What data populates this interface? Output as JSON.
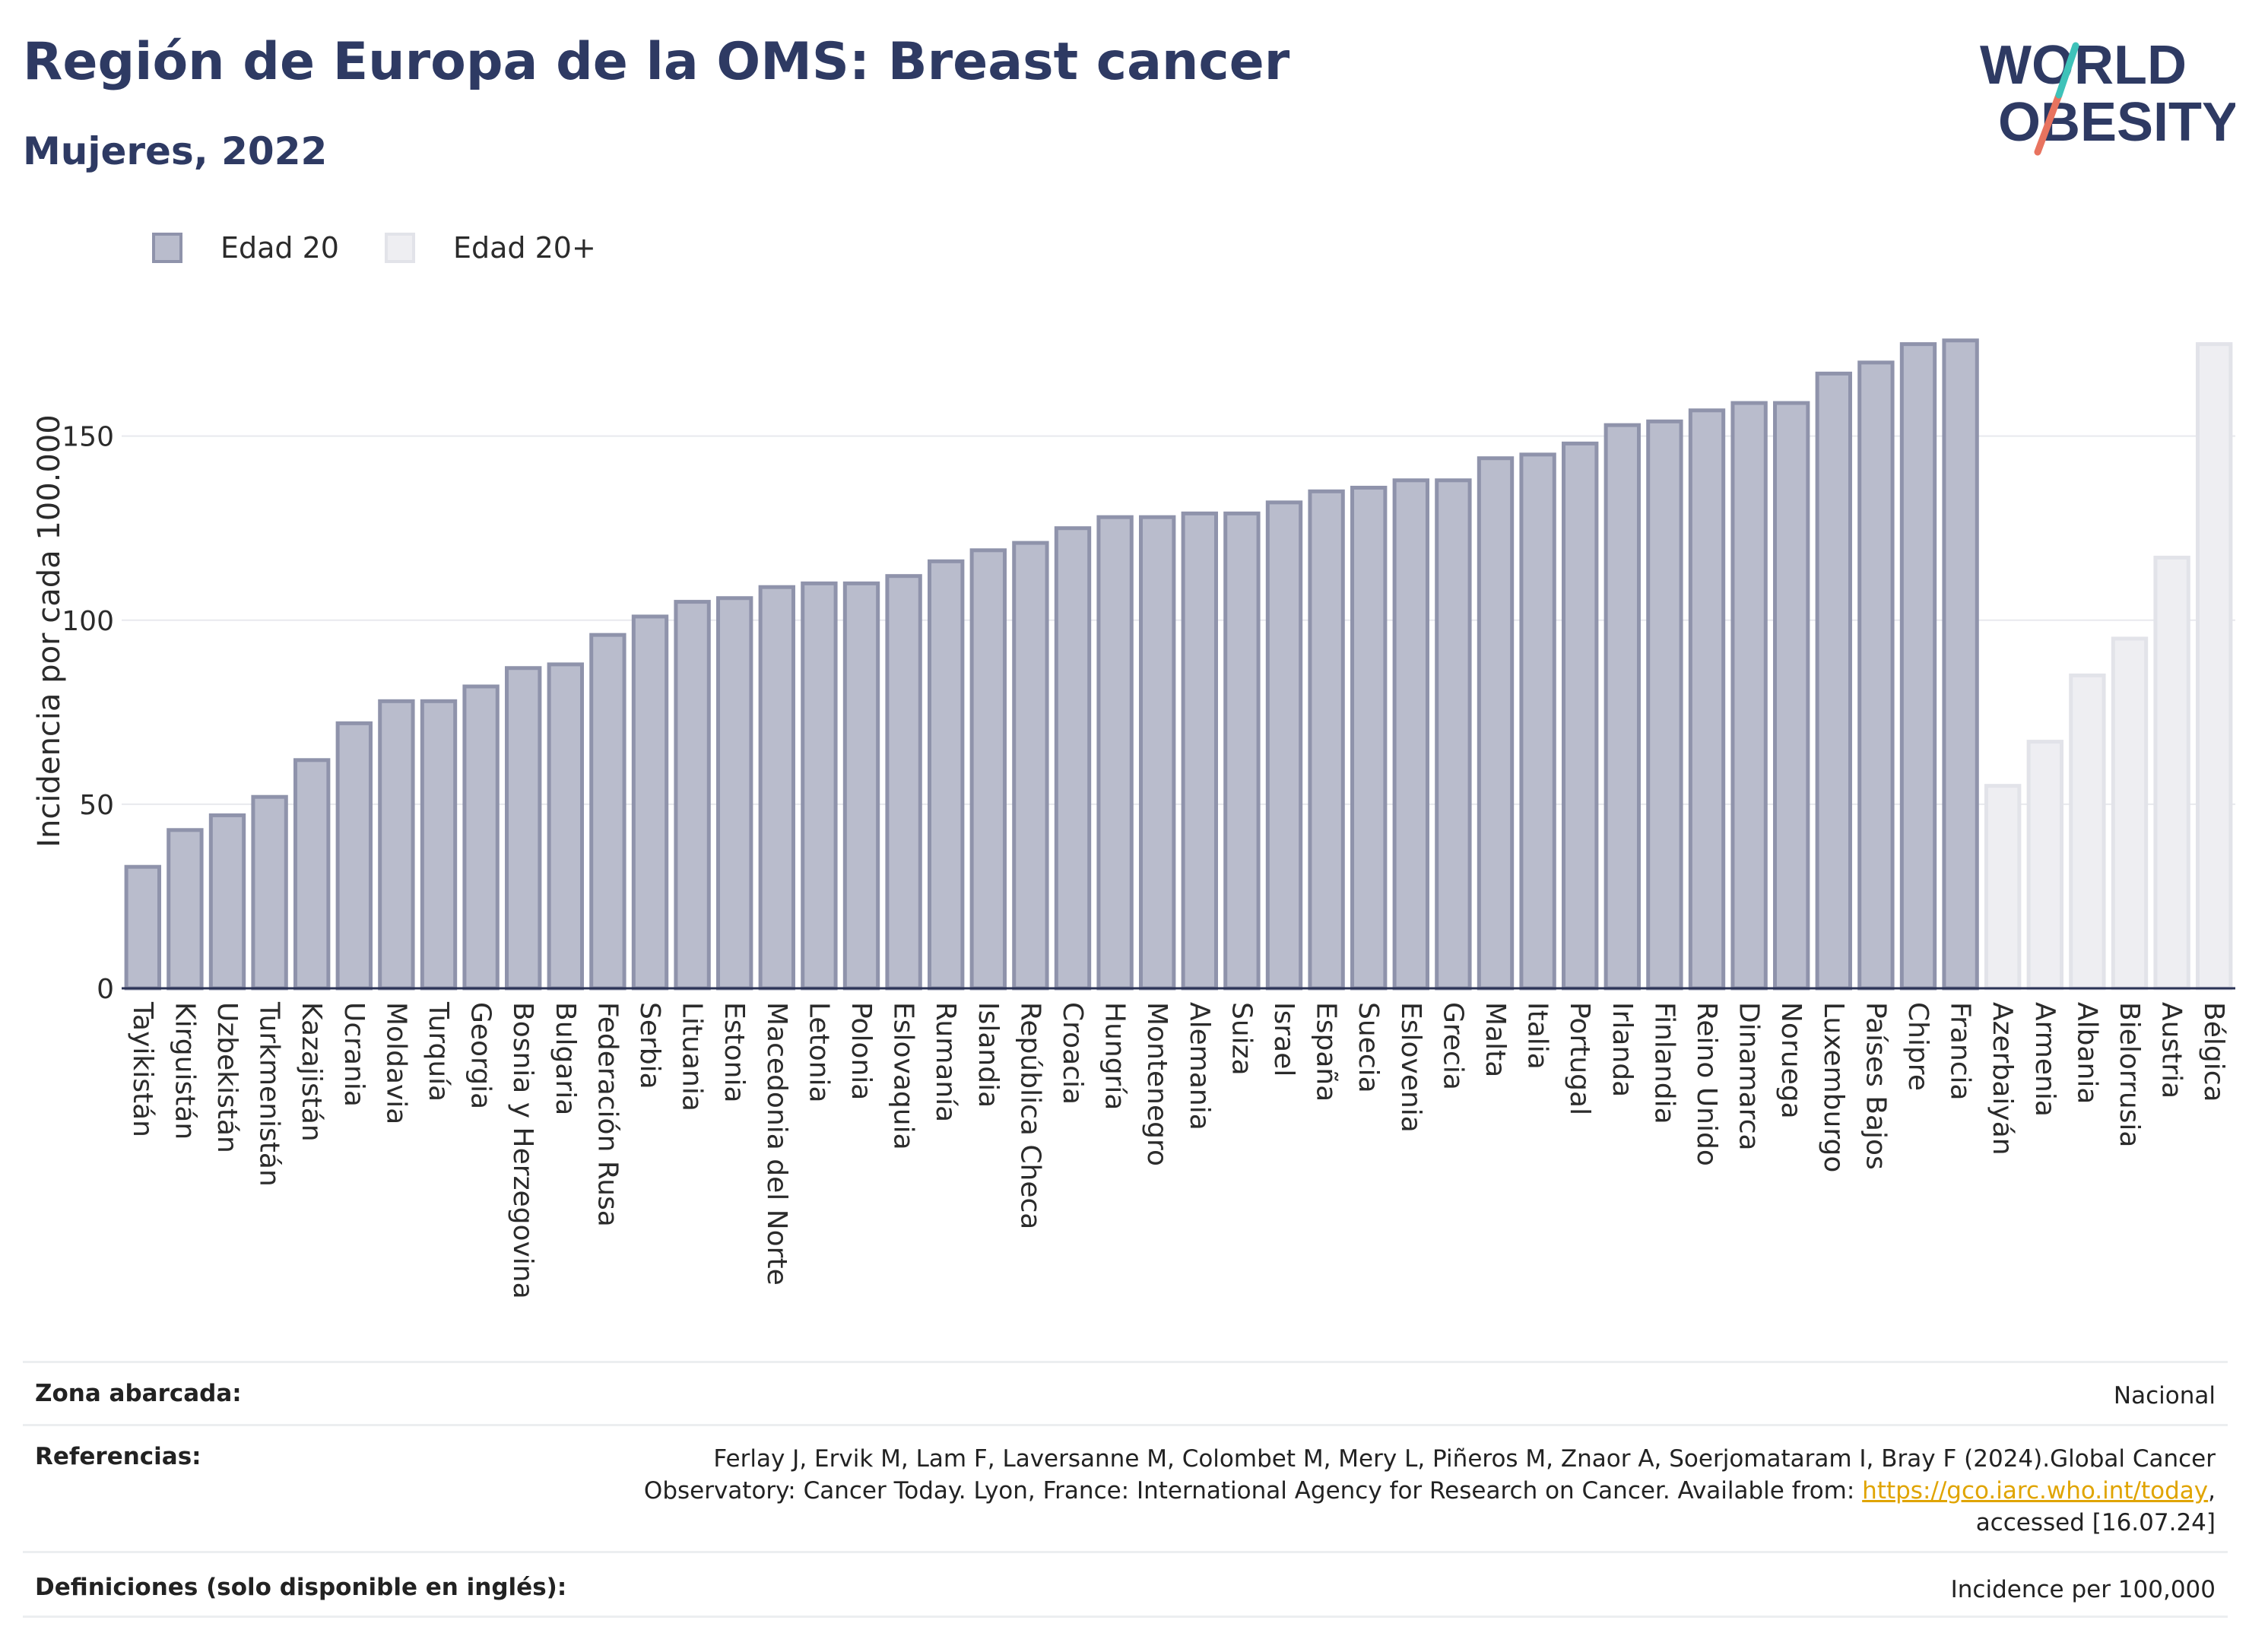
{
  "header": {
    "title": "Región de Europa de la OMS: Breast cancer",
    "subtitle": "Mujeres, 2022"
  },
  "logo": {
    "line1": "WORLD",
    "line2": "OBESITY"
  },
  "legend": [
    {
      "label": "Edad 20",
      "color": "#b9bccc"
    },
    {
      "label": "Edad 20+",
      "color": "#eeeef2"
    }
  ],
  "chart_data": {
    "type": "bar",
    "ylabel": "Incidencia por cada 100.000",
    "ylim": [
      0,
      190
    ],
    "yticks": [
      0,
      50,
      100,
      150
    ],
    "grid": true,
    "legend_position": "top-left",
    "categories": [
      "Tayikistán",
      "Kirguistán",
      "Uzbekistán",
      "Turkmenistán",
      "Kazajistán",
      "Ucrania",
      "Moldavia",
      "Turquía",
      "Georgia",
      "Bosnia y Herzegovina",
      "Bulgaria",
      "Federación Rusa",
      "Serbia",
      "Lituania",
      "Estonia",
      "Macedonia del Norte",
      "Letonia",
      "Polonia",
      "Eslovaquia",
      "Rumanía",
      "Islandia",
      "República Checa",
      "Croacia",
      "Hungría",
      "Montenegro",
      "Alemania",
      "Suiza",
      "Israel",
      "España",
      "Suecia",
      "Eslovenia",
      "Grecia",
      "Malta",
      "Italia",
      "Portugal",
      "Irlanda",
      "Finlandia",
      "Reino Unido",
      "Dinamarca",
      "Noruega",
      "Luxemburgo",
      "Países Bajos",
      "Chipre",
      "Francia",
      "Azerbaiyán",
      "Armenia",
      "Albania",
      "Bielorrusia",
      "Austria",
      "Bélgica"
    ],
    "series": [
      {
        "name": "Edad 20",
        "values": [
          33,
          43,
          47,
          52,
          62,
          72,
          78,
          78,
          82,
          87,
          88,
          96,
          101,
          105,
          106,
          109,
          110,
          110,
          112,
          116,
          119,
          121,
          125,
          128,
          128,
          129,
          129,
          132,
          135,
          136,
          138,
          138,
          144,
          145,
          148,
          153,
          154,
          157,
          159,
          159,
          167,
          170,
          175,
          176,
          null,
          null,
          null,
          null,
          null,
          null
        ]
      },
      {
        "name": "Edad 20+",
        "values": [
          null,
          null,
          null,
          null,
          null,
          null,
          null,
          null,
          null,
          null,
          null,
          null,
          null,
          null,
          null,
          null,
          null,
          null,
          null,
          null,
          null,
          null,
          null,
          null,
          null,
          null,
          null,
          null,
          null,
          null,
          null,
          null,
          null,
          null,
          null,
          null,
          null,
          null,
          null,
          null,
          null,
          null,
          null,
          null,
          55,
          67,
          85,
          95,
          117,
          175
        ]
      }
    ],
    "colors": {
      "primary_fill": "#b9bccc",
      "primary_stroke": "#8f93ab",
      "secondary_fill": "#eeeef2",
      "secondary_stroke": "#e2e3e9",
      "grid": "#e8e9ee",
      "axis": "#2b3356"
    }
  },
  "footer": {
    "rows": [
      {
        "label": "Zona abarcada:",
        "value": "Nacional"
      },
      {
        "label": "Referencias:",
        "value_line1": "Ferlay J, Ervik M, Lam F, Laversanne M, Colombet M, Mery L, Piñeros M, Znaor A, Soerjomataram I, Bray F (2024).Global Cancer",
        "value_line2_pre": "Observatory: Cancer Today. Lyon, France: International Agency for Research on Cancer. Available from: ",
        "value_link": "https://gco.iarc.who.int/today",
        "value_line2_post": ",",
        "value_line3": "accessed [16.07.24]"
      },
      {
        "label": "Definiciones (solo disponible en inglés):",
        "value": "Incidence per 100,000"
      }
    ]
  }
}
